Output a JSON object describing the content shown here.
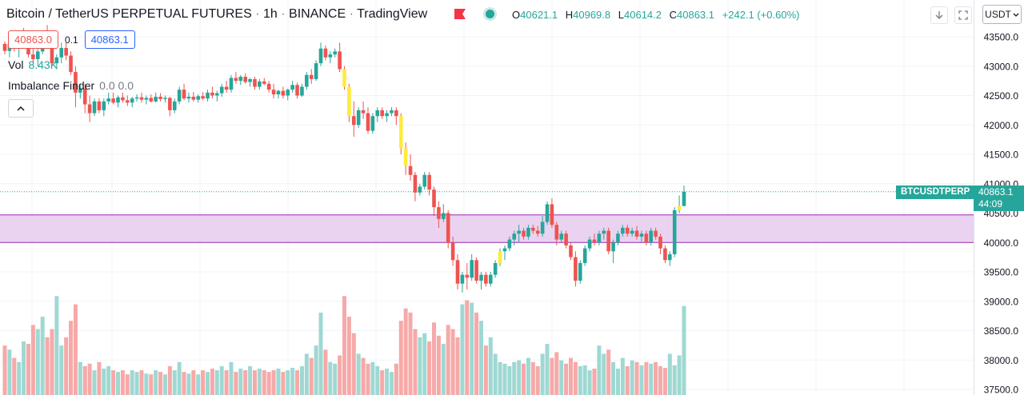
{
  "legend": {
    "title": "Bitcoin / TetherUS PERPETUAL FUTURES",
    "interval": "1h",
    "exchange": "BINANCE",
    "source": "TradingView",
    "o_label": "O",
    "o_value": "40621.1",
    "h_label": "H",
    "h_value": "40969.8",
    "l_label": "L",
    "l_value": "40614.2",
    "c_label": "C",
    "c_value": "40863.1",
    "change": "+242.1 (+0.60%)",
    "bid": "40863.0",
    "spread": "0.1",
    "ask": "40863.1",
    "vol_label": "Vol",
    "vol_value": "8.43K",
    "imbalance_label": "Imbalance Finder",
    "imbalance_values": "0.0  0.0",
    "collapse_icon": "chevron-up-icon",
    "flag_icon": "flag-icon",
    "status_icon": "market-open-dot-icon"
  },
  "toolbar": {
    "download_icon": "arrow-down-icon",
    "fullscreen_icon": "fullscreen-icon",
    "currency": "USDT"
  },
  "last_price": {
    "symbol": "BTCUSDTPERP",
    "price": "40863.1",
    "countdown": "44:09"
  },
  "colors": {
    "up": "#26a69a",
    "down": "#ef5350",
    "imbalance_candle": "#ffeb3b",
    "zone_fill": "#e9d3f0",
    "zone_border": "#9c27b0",
    "vol_up": "#9fd8d2",
    "vol_down": "#f6a9a8"
  },
  "chart_data": {
    "type": "candlestick",
    "y_ticks": [
      "43500.0",
      "43000.0",
      "42500.0",
      "42000.0",
      "41500.0",
      "41000.0",
      "40500.0",
      "40000.0",
      "39500.0",
      "39000.0",
      "38500.0",
      "38000.0",
      "37500.0"
    ],
    "ylim": [
      37400,
      43750
    ],
    "grid": true,
    "zone": {
      "top": 40470,
      "bottom": 40000
    },
    "last_price_line": 40863.1,
    "candles": [
      [
        43380,
        43420,
        43200,
        43260
      ],
      [
        43260,
        43450,
        43150,
        43380
      ],
      [
        43380,
        43520,
        43250,
        43300
      ],
      [
        43300,
        43500,
        43150,
        43420
      ],
      [
        43420,
        43650,
        43300,
        43540
      ],
      [
        43540,
        43600,
        43150,
        43200
      ],
      [
        43200,
        43350,
        43050,
        43120
      ],
      [
        43120,
        43300,
        43000,
        43250
      ],
      [
        43250,
        43600,
        43200,
        43480
      ],
      [
        43480,
        43700,
        43300,
        43380
      ],
      [
        43380,
        43450,
        43000,
        43050
      ],
      [
        43050,
        43200,
        42950,
        43150
      ],
      [
        43150,
        43400,
        43050,
        43310
      ],
      [
        43310,
        43400,
        43100,
        43180
      ],
      [
        43180,
        43250,
        42850,
        42900
      ],
      [
        42900,
        43000,
        42300,
        42550
      ],
      [
        42550,
        42700,
        42450,
        42620
      ],
      [
        42620,
        42700,
        42200,
        42350
      ],
      [
        42350,
        42500,
        42050,
        42200
      ],
      [
        42200,
        42450,
        42150,
        42400
      ],
      [
        42400,
        42450,
        42200,
        42250
      ],
      [
        42250,
        42450,
        42150,
        42400
      ],
      [
        42400,
        42550,
        42350,
        42450
      ],
      [
        42450,
        42550,
        42350,
        42380
      ],
      [
        42380,
        42500,
        42300,
        42470
      ],
      [
        42470,
        42550,
        42380,
        42420
      ],
      [
        42420,
        42500,
        42320,
        42380
      ],
      [
        42380,
        42480,
        42300,
        42450
      ],
      [
        42450,
        42520,
        42400,
        42470
      ],
      [
        42470,
        42550,
        42380,
        42430
      ],
      [
        42430,
        42500,
        42350,
        42460
      ],
      [
        42460,
        42520,
        42380,
        42400
      ],
      [
        42400,
        42550,
        42380,
        42480
      ],
      [
        42480,
        42540,
        42400,
        42440
      ],
      [
        42440,
        42500,
        42380,
        42460
      ],
      [
        42460,
        42480,
        42150,
        42250
      ],
      [
        42250,
        42450,
        42200,
        42400
      ],
      [
        42400,
        42650,
        42350,
        42600
      ],
      [
        42600,
        42700,
        42420,
        42450
      ],
      [
        42450,
        42550,
        42380,
        42480
      ],
      [
        42480,
        42560,
        42400,
        42430
      ],
      [
        42430,
        42520,
        42380,
        42490
      ],
      [
        42490,
        42560,
        42420,
        42450
      ],
      [
        42450,
        42600,
        42400,
        42550
      ],
      [
        42550,
        42650,
        42450,
        42500
      ],
      [
        42500,
        42580,
        42400,
        42540
      ],
      [
        42540,
        42700,
        42480,
        42650
      ],
      [
        42650,
        42750,
        42550,
        42600
      ],
      [
        42600,
        42850,
        42550,
        42800
      ],
      [
        42800,
        42900,
        42700,
        42750
      ],
      [
        42750,
        42850,
        42680,
        42820
      ],
      [
        42820,
        42880,
        42700,
        42730
      ],
      [
        42730,
        42800,
        42650,
        42780
      ],
      [
        42780,
        42820,
        42600,
        42650
      ],
      [
        42650,
        42780,
        42600,
        42740
      ],
      [
        42740,
        42800,
        42680,
        42700
      ],
      [
        42700,
        42750,
        42550,
        42600
      ],
      [
        42600,
        42700,
        42450,
        42520
      ],
      [
        42520,
        42600,
        42450,
        42580
      ],
      [
        42580,
        42650,
        42450,
        42500
      ],
      [
        42500,
        42620,
        42420,
        42600
      ],
      [
        42600,
        42750,
        42550,
        42680
      ],
      [
        42680,
        42720,
        42450,
        42500
      ],
      [
        42500,
        42700,
        42480,
        42650
      ],
      [
        42650,
        42900,
        42600,
        42850
      ],
      [
        42850,
        42950,
        42700,
        42780
      ],
      [
        42780,
        43100,
        42750,
        43050
      ],
      [
        43050,
        43400,
        43000,
        43300
      ],
      [
        43300,
        43350,
        43100,
        43150
      ],
      [
        43150,
        43250,
        43050,
        43200
      ],
      [
        43200,
        43300,
        43150,
        43250
      ],
      [
        43250,
        43400,
        42900,
        42950
      ],
      [
        42950,
        43000,
        42600,
        42650
      ],
      [
        42650,
        42700,
        42050,
        42150
      ],
      [
        42150,
        42400,
        41800,
        42000
      ],
      [
        42000,
        42300,
        41950,
        42250
      ],
      [
        42250,
        42400,
        42100,
        42200
      ],
      [
        42200,
        42300,
        41850,
        41900
      ],
      [
        41900,
        42200,
        41850,
        42150
      ],
      [
        42150,
        42300,
        42050,
        42250
      ],
      [
        42250,
        42300,
        42100,
        42150
      ],
      [
        42150,
        42250,
        42050,
        42200
      ],
      [
        42200,
        42300,
        42150,
        42250
      ],
      [
        42250,
        42300,
        42000,
        42150
      ],
      [
        42150,
        42200,
        41500,
        41600
      ],
      [
        41600,
        41700,
        41150,
        41300
      ],
      [
        41300,
        41500,
        41050,
        41150
      ],
      [
        41150,
        41200,
        40700,
        40850
      ],
      [
        40850,
        41000,
        40800,
        40950
      ],
      [
        40950,
        41200,
        40900,
        41150
      ],
      [
        41150,
        41200,
        40800,
        40900
      ],
      [
        40900,
        40950,
        40450,
        40600
      ],
      [
        40600,
        40700,
        40250,
        40400
      ],
      [
        40400,
        40650,
        40350,
        40500
      ],
      [
        40500,
        40550,
        39900,
        40000
      ],
      [
        40000,
        40100,
        39600,
        39700
      ],
      [
        39700,
        39800,
        39200,
        39300
      ],
      [
        39300,
        39500,
        39150,
        39450
      ],
      [
        39450,
        39650,
        39200,
        39400
      ],
      [
        39400,
        39800,
        39350,
        39700
      ],
      [
        39700,
        39750,
        39300,
        39350
      ],
      [
        39350,
        39500,
        39200,
        39450
      ],
      [
        39450,
        39500,
        39250,
        39300
      ],
      [
        39300,
        39500,
        39250,
        39450
      ],
      [
        39450,
        39700,
        39400,
        39650
      ],
      [
        39650,
        39900,
        39600,
        39850
      ],
      [
        39850,
        39950,
        39700,
        39900
      ],
      [
        39900,
        40100,
        39850,
        40050
      ],
      [
        40050,
        40200,
        39950,
        40150
      ],
      [
        40150,
        40300,
        40000,
        40200
      ],
      [
        40200,
        40250,
        40050,
        40100
      ],
      [
        40100,
        40300,
        40050,
        40250
      ],
      [
        40250,
        40300,
        40150,
        40200
      ],
      [
        40200,
        40280,
        40100,
        40150
      ],
      [
        40150,
        40450,
        40100,
        40350
      ],
      [
        40350,
        40700,
        40300,
        40650
      ],
      [
        40650,
        40750,
        40250,
        40300
      ],
      [
        40300,
        40350,
        39950,
        40050
      ],
      [
        40050,
        40200,
        40000,
        40150
      ],
      [
        40150,
        40200,
        39900,
        39950
      ],
      [
        39950,
        40000,
        39700,
        39750
      ],
      [
        39750,
        39850,
        39250,
        39350
      ],
      [
        39350,
        39700,
        39300,
        39650
      ],
      [
        39650,
        39950,
        39600,
        39900
      ],
      [
        39900,
        40100,
        39850,
        40050
      ],
      [
        40050,
        40150,
        39950,
        40000
      ],
      [
        40000,
        40200,
        39950,
        40150
      ],
      [
        40150,
        40250,
        40050,
        40200
      ],
      [
        40200,
        40250,
        39800,
        39850
      ],
      [
        39850,
        40050,
        39650,
        40000
      ],
      [
        40000,
        40200,
        39950,
        40150
      ],
      [
        40150,
        40300,
        40100,
        40250
      ],
      [
        40250,
        40300,
        40100,
        40150
      ],
      [
        40150,
        40250,
        40100,
        40200
      ],
      [
        40200,
        40280,
        40050,
        40100
      ],
      [
        40100,
        40200,
        40000,
        40150
      ],
      [
        40150,
        40200,
        39950,
        40000
      ],
      [
        40000,
        40250,
        39950,
        40200
      ],
      [
        40200,
        40250,
        40050,
        40100
      ],
      [
        40100,
        40150,
        39800,
        39900
      ],
      [
        39900,
        39950,
        39650,
        39700
      ],
      [
        39700,
        39850,
        39600,
        39800
      ],
      [
        39800,
        40600,
        39750,
        40550
      ],
      [
        40550,
        40800,
        40500,
        40621
      ],
      [
        40621,
        40970,
        40614,
        40863
      ]
    ],
    "volume_ylim": [
      0,
      130
    ],
    "volumes": [
      60,
      55,
      45,
      40,
      65,
      62,
      85,
      80,
      95,
      70,
      80,
      120,
      60,
      70,
      90,
      110,
      40,
      35,
      38,
      30,
      40,
      32,
      35,
      30,
      28,
      30,
      25,
      30,
      28,
      30,
      26,
      25,
      30,
      28,
      25,
      35,
      30,
      40,
      28,
      26,
      30,
      25,
      30,
      28,
      32,
      30,
      35,
      30,
      40,
      28,
      32,
      30,
      35,
      30,
      32,
      30,
      28,
      30,
      32,
      28,
      30,
      33,
      30,
      35,
      50,
      45,
      60,
      100,
      55,
      40,
      38,
      48,
      120,
      95,
      75,
      50,
      45,
      38,
      40,
      35,
      30,
      32,
      28,
      38,
      90,
      105,
      100,
      80,
      70,
      75,
      65,
      88,
      72,
      62,
      85,
      80,
      70,
      110,
      115,
      112,
      100,
      90,
      60,
      70,
      50,
      40,
      38,
      35,
      40,
      42,
      38,
      45,
      40,
      35,
      50,
      62,
      45,
      52,
      42,
      38,
      45,
      40,
      35,
      36,
      30,
      32,
      60,
      50,
      55,
      40,
      32,
      45,
      35,
      42,
      40,
      36,
      40,
      38,
      40,
      35,
      33,
      50,
      36,
      48,
      108,
      112,
      60
    ]
  }
}
